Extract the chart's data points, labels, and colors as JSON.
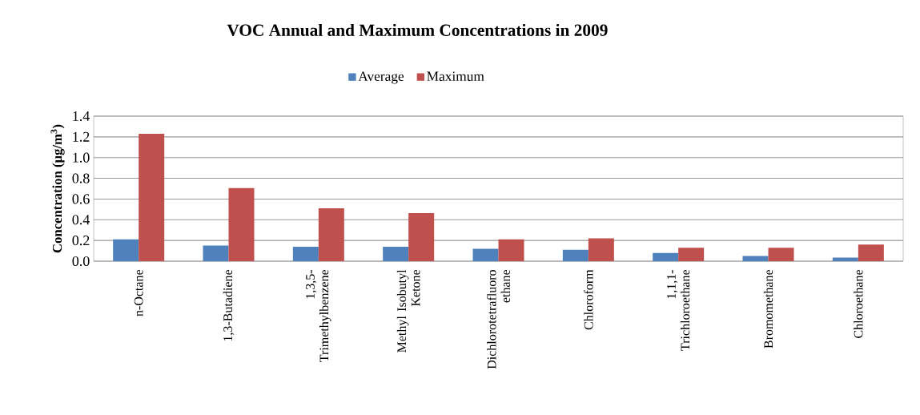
{
  "chart_data": {
    "type": "bar",
    "title": "VOC Annual and Maximum Concentrations in 2009",
    "ylabel": "Concentration (µg/m$^{3}$)",
    "categories": [
      "n-Octane",
      "1,3-Butadiene",
      "1,3,5-Trimethylbenzene",
      "Methyl Isobutyl Ketone",
      "Dichlorotetrafluoro ethane",
      "Chloroform",
      "1,1,1-Trichloroethane",
      "Bromomethane",
      "Chloroethane"
    ],
    "series": [
      {
        "name": "Average",
        "color": "#4f81bd",
        "values": [
          0.21,
          0.15,
          0.14,
          0.14,
          0.12,
          0.11,
          0.08,
          0.05,
          0.035
        ]
      },
      {
        "name": "Maximum",
        "color": "#c0504d",
        "values": [
          1.23,
          0.705,
          0.51,
          0.465,
          0.21,
          0.22,
          0.13,
          0.13,
          0.16
        ]
      }
    ],
    "ylim": [
      0,
      1.4
    ],
    "yticks": [
      {
        "value": 0,
        "label": "0.0"
      },
      0.2,
      0.4,
      0.6,
      0.8,
      {
        "value": 1,
        "label": "1.0"
      },
      1.2,
      1.4
    ],
    "grid": "y",
    "legend": "top"
  }
}
